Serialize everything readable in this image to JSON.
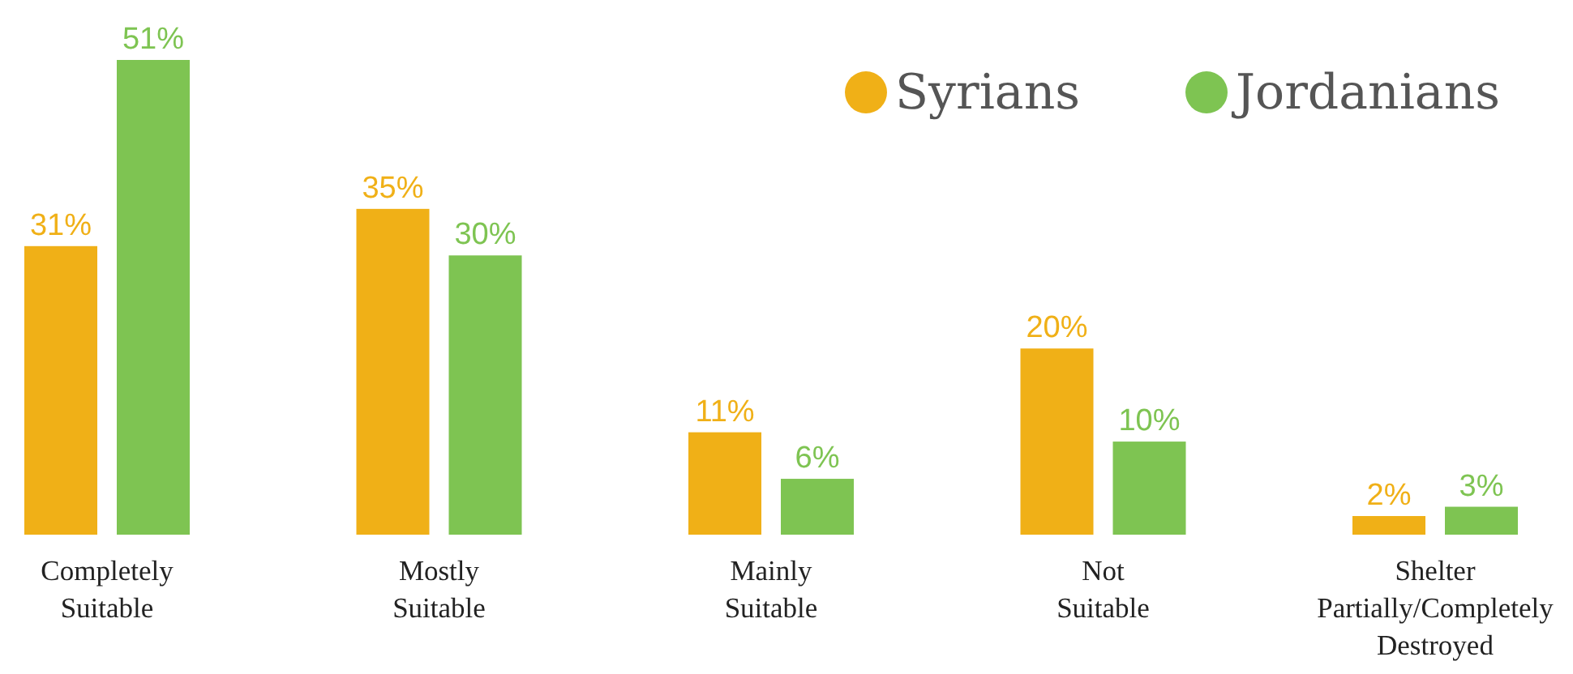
{
  "chart_data": {
    "type": "bar",
    "categories": [
      "Completely Suitable",
      "Mostly Suitable",
      "Mainly Suitable",
      "Not Suitable",
      "Shelter Partially/Completely Destroyed"
    ],
    "series": [
      {
        "name": "Syrians",
        "color": "#f0b017",
        "values": [
          31,
          35,
          11,
          20,
          2
        ],
        "value_labels": [
          "31%",
          "35%",
          "11%",
          "20%",
          "2%"
        ]
      },
      {
        "name": "Jordanians",
        "color": "#7ec452",
        "values": [
          51,
          30,
          6,
          10,
          3
        ],
        "value_labels": [
          "51%",
          "30%",
          "6%",
          "10%",
          "3%"
        ]
      }
    ],
    "legend": "top right"
  }
}
